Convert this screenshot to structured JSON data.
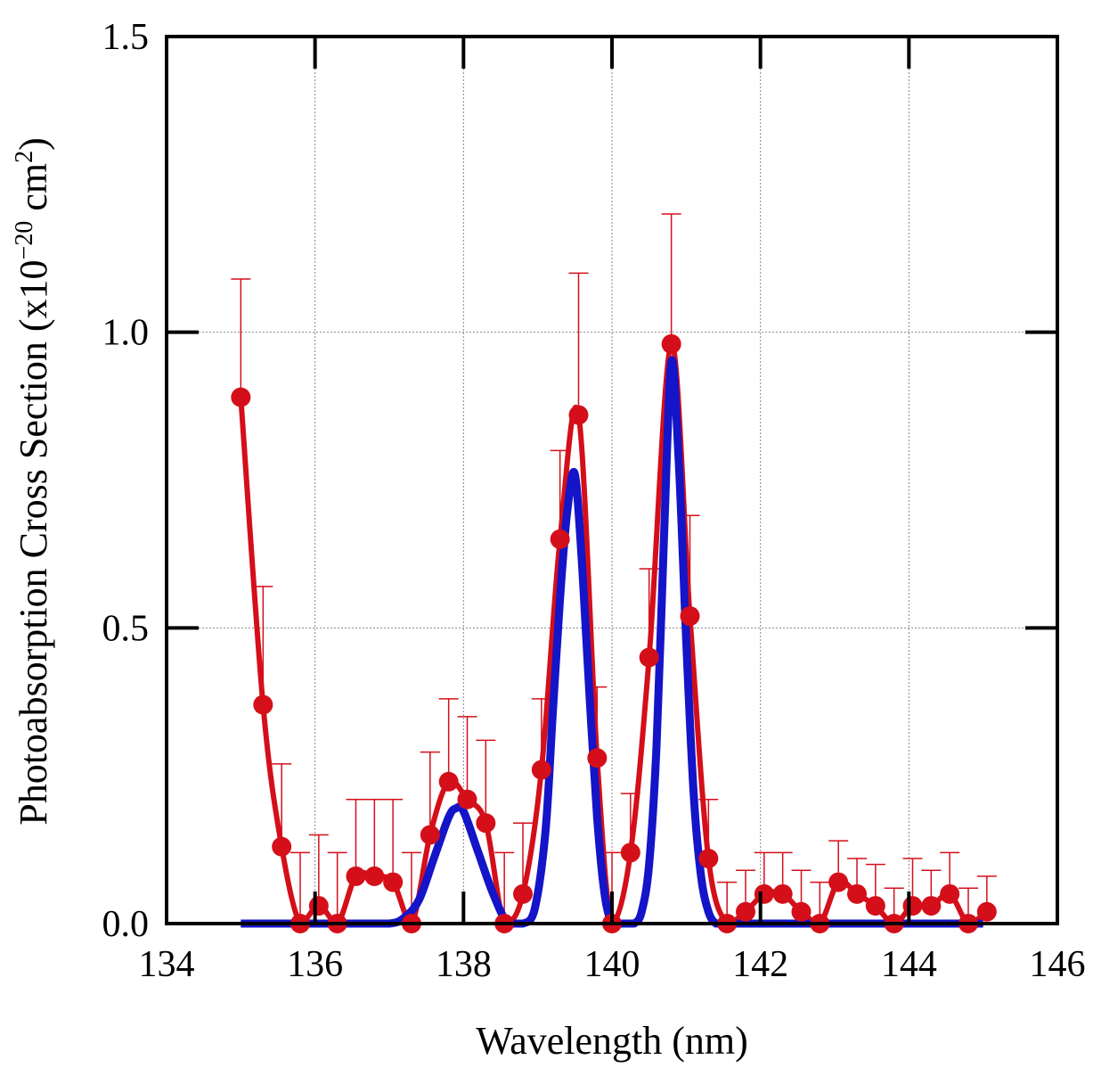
{
  "chart_data": {
    "type": "line",
    "title": "",
    "xlabel": "Wavelength (nm)",
    "ylabel": {
      "base": "Photoabsorption Cross Section (x10",
      "exp1": "−20",
      "mid": " cm",
      "exp2": "2",
      "end": ")"
    },
    "xlim": [
      134,
      146
    ],
    "ylim": [
      0,
      1.5
    ],
    "x_ticks": [
      134,
      136,
      138,
      140,
      142,
      144,
      146
    ],
    "x_tick_labels": [
      "134",
      "136",
      "138",
      "140",
      "142",
      "144",
      "146"
    ],
    "y_ticks": [
      0,
      0.5,
      1.0,
      1.5
    ],
    "y_tick_labels": [
      "0.0",
      "0.5",
      "1.0",
      "1.5"
    ],
    "grid": true,
    "series": [
      {
        "style": "line-markers-errorbars",
        "color": "#d40f1a",
        "x": [
          135.0,
          135.3,
          135.55,
          135.8,
          136.05,
          136.3,
          136.55,
          136.8,
          137.05,
          137.3,
          137.55,
          137.8,
          138.05,
          138.3,
          138.55,
          138.8,
          139.05,
          139.3,
          139.55,
          139.8,
          140.0,
          140.25,
          140.5,
          140.8,
          141.05,
          141.3,
          141.55,
          141.8,
          142.05,
          142.3,
          142.55,
          142.8,
          143.05,
          143.3,
          143.55,
          143.8,
          144.05,
          144.3,
          144.55,
          144.8,
          145.05
        ],
        "y": [
          0.89,
          0.37,
          0.13,
          0.0,
          0.03,
          0.0,
          0.08,
          0.08,
          0.07,
          0.0,
          0.15,
          0.24,
          0.21,
          0.17,
          0.0,
          0.05,
          0.26,
          0.65,
          0.86,
          0.28,
          0.0,
          0.12,
          0.45,
          0.98,
          0.52,
          0.11,
          0.0,
          0.02,
          0.05,
          0.05,
          0.02,
          0.0,
          0.07,
          0.05,
          0.03,
          0.0,
          0.03,
          0.03,
          0.05,
          0.0,
          0.02
        ],
        "y_err": [
          0.2,
          0.2,
          0.14,
          0.12,
          0.12,
          0.12,
          0.13,
          0.13,
          0.14,
          0.12,
          0.14,
          0.14,
          0.14,
          0.14,
          0.12,
          0.12,
          0.12,
          0.15,
          0.24,
          0.12,
          0.12,
          0.1,
          0.15,
          0.22,
          0.17,
          0.1,
          0.07,
          0.07,
          0.07,
          0.07,
          0.07,
          0.07,
          0.07,
          0.06,
          0.07,
          0.06,
          0.08,
          0.06,
          0.07,
          0.06,
          0.06
        ]
      },
      {
        "style": "line",
        "color": "#1414c8",
        "x": [
          135.0,
          135.5,
          136.0,
          136.5,
          137.0,
          137.2,
          137.4,
          137.6,
          137.8,
          137.9,
          138.0,
          138.2,
          138.4,
          138.6,
          138.8,
          138.95,
          139.1,
          139.2,
          139.3,
          139.4,
          139.5,
          139.6,
          139.7,
          139.8,
          139.9,
          140.0,
          140.1,
          140.2,
          140.3,
          140.4,
          140.5,
          140.6,
          140.7,
          140.8,
          140.9,
          141.0,
          141.1,
          141.2,
          141.3,
          141.4,
          141.5,
          142.0,
          143.0,
          144.0,
          145.0
        ],
        "y": [
          0.0,
          0.0,
          0.0,
          0.0,
          0.0,
          0.01,
          0.04,
          0.11,
          0.18,
          0.195,
          0.19,
          0.12,
          0.05,
          0.0,
          0.0,
          0.02,
          0.15,
          0.35,
          0.55,
          0.7,
          0.76,
          0.6,
          0.38,
          0.18,
          0.05,
          0.0,
          0.0,
          0.0,
          0.0,
          0.02,
          0.1,
          0.3,
          0.65,
          0.95,
          0.78,
          0.48,
          0.22,
          0.08,
          0.02,
          0.0,
          0.0,
          0.0,
          0.0,
          0.0,
          0.0
        ]
      }
    ]
  }
}
